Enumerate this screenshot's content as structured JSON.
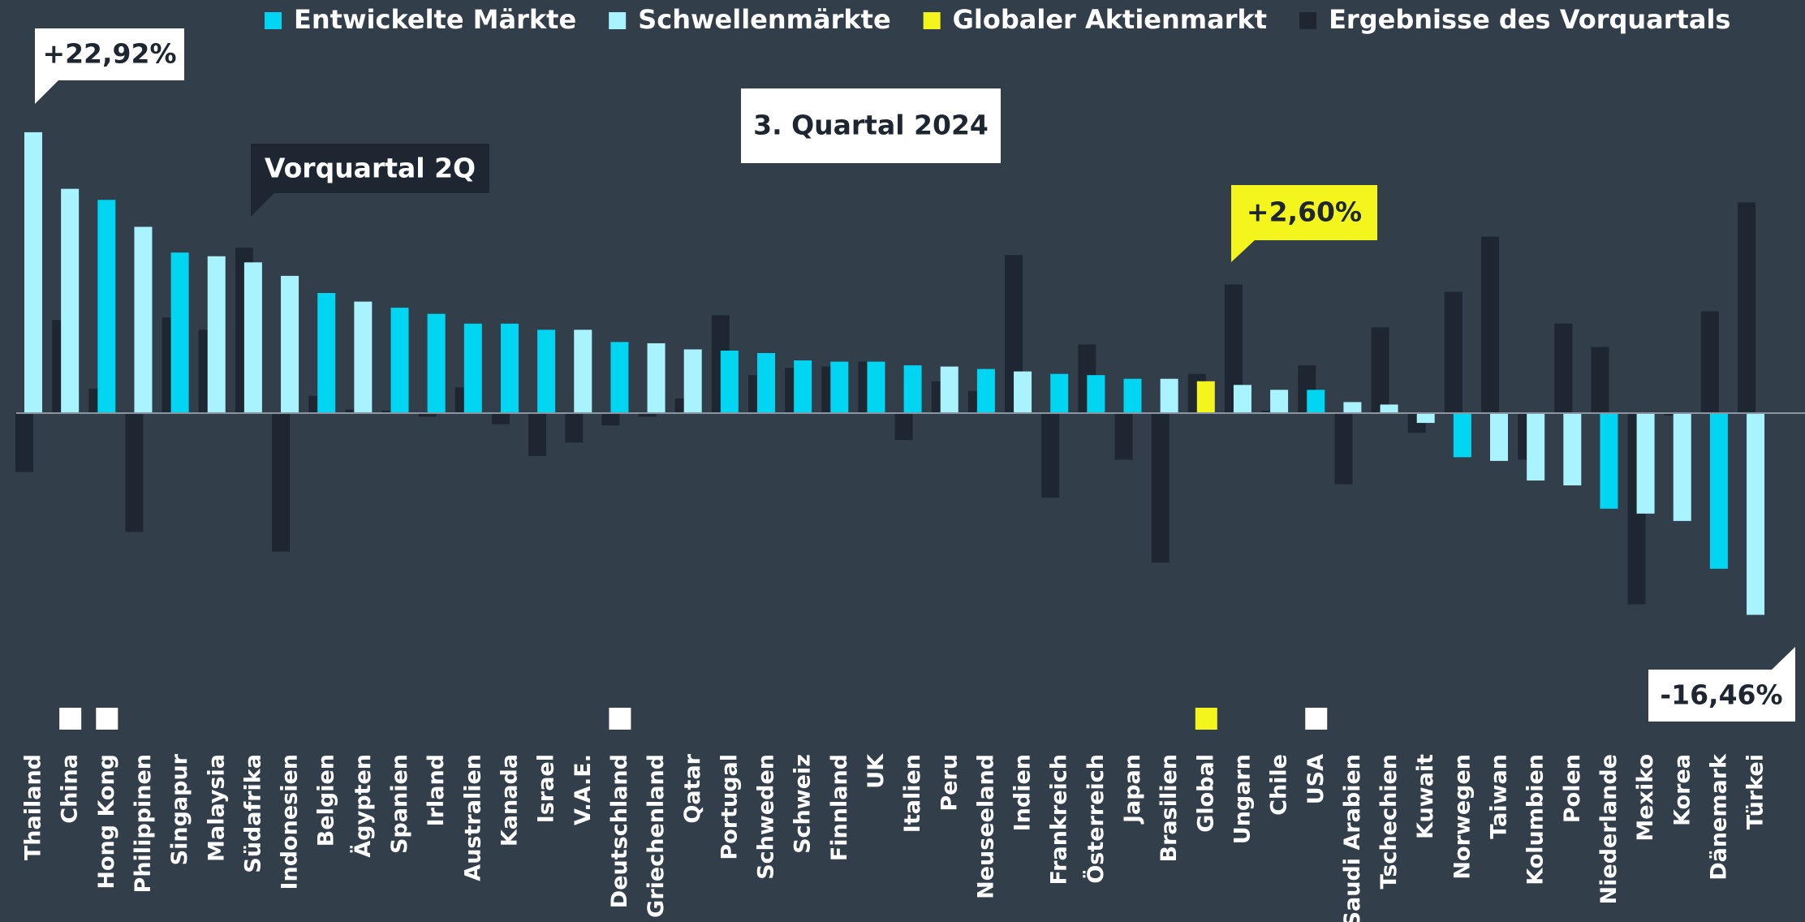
{
  "chart_data": {
    "type": "bar",
    "title": "3. Quartal 2024",
    "annotation": "Vorquartal 2Q",
    "categories": [
      "Thailand",
      "China",
      "Hong Kong",
      "Philippinen",
      "Singapur",
      "Malaysia",
      "Südafrika",
      "Indonesien",
      "Belgien",
      "Ägypten",
      "Spanien",
      "Irland",
      "Australien",
      "Kanada",
      "Israel",
      "V.A.E.",
      "Deutschland",
      "Griechenland",
      "Qatar",
      "Portugal",
      "Schweden",
      "Schweiz",
      "Finnland",
      "UK",
      "Italien",
      "Peru",
      "Neuseeland",
      "Indien",
      "Frankreich",
      "Österreich",
      "Japan",
      "Brasilien",
      "Global",
      "Ungarn",
      "Chile",
      "USA",
      "Saudi Arabien",
      "Tschechien",
      "Kuwait",
      "Norwegen",
      "Taiwan",
      "Kolumbien",
      "Polen",
      "Niederlande",
      "Mexiko",
      "Korea",
      "Dänemark",
      "Türkei"
    ],
    "groups": [
      {
        "name": "Entwickelte Märkte",
        "color": "#00d5f2"
      },
      {
        "name": "Schwellenmärkte",
        "color": "#a9f3ff"
      },
      {
        "name": "Globaler Aktienmarkt",
        "color": "#f5f51e"
      }
    ],
    "series": [
      {
        "values": [
          22.92,
          18.3,
          17.4,
          15.2,
          13.1,
          12.8,
          12.3,
          11.2,
          9.8,
          9.1,
          8.6,
          8.1,
          7.3,
          7.3,
          6.8,
          6.8,
          5.8,
          5.7,
          5.2,
          5.1,
          4.9,
          4.3,
          4.2,
          4.2,
          3.9,
          3.8,
          3.6,
          3.4,
          3.2,
          3.1,
          2.8,
          2.8,
          2.6,
          2.3,
          1.9,
          1.9,
          0.9,
          0.7,
          -0.8,
          -3.6,
          -3.9,
          -5.5,
          -5.9,
          -7.8,
          -8.2,
          -8.8,
          -12.7,
          -16.46
        ],
        "value_labels": [
          "+22,92%",
          null,
          null,
          null,
          null,
          null,
          null,
          null,
          null,
          null,
          null,
          null,
          null,
          null,
          null,
          null,
          null,
          null,
          null,
          null,
          null,
          null,
          null,
          null,
          null,
          null,
          null,
          null,
          null,
          null,
          null,
          null,
          "+2,60%",
          null,
          null,
          null,
          null,
          null,
          null,
          null,
          null,
          null,
          null,
          null,
          null,
          null,
          null,
          "-16,46%"
        ],
        "groups": [
          1,
          1,
          0,
          1,
          0,
          1,
          1,
          1,
          0,
          1,
          0,
          0,
          0,
          0,
          0,
          1,
          0,
          1,
          1,
          0,
          0,
          0,
          0,
          0,
          0,
          1,
          0,
          1,
          0,
          0,
          0,
          1,
          2,
          1,
          1,
          0,
          1,
          1,
          1,
          0,
          1,
          1,
          1,
          0,
          1,
          1,
          0,
          1
        ]
      },
      {
        "name": "Ergebnisse des Vorquartals",
        "color": "#1e2731",
        "values": [
          -4.8,
          7.6,
          2.0,
          -9.7,
          7.8,
          6.8,
          13.5,
          -11.3,
          1.4,
          0.3,
          0.2,
          -0.3,
          2.1,
          -0.9,
          -3.5,
          -2.4,
          -1.0,
          -0.3,
          1.2,
          8.0,
          3.1,
          3.7,
          3.8,
          4.2,
          -2.2,
          2.6,
          1.8,
          12.9,
          -6.9,
          5.6,
          -3.8,
          -12.2,
          3.2,
          10.5,
          0.2,
          3.9,
          -5.8,
          7.0,
          -1.6,
          9.9,
          14.4,
          -3.8,
          7.3,
          5.4,
          -15.6,
          -0.2,
          8.3,
          17.2
        ]
      }
    ],
    "marker_indices": [
      1,
      2,
      16,
      35,
      32
    ]
  }
}
